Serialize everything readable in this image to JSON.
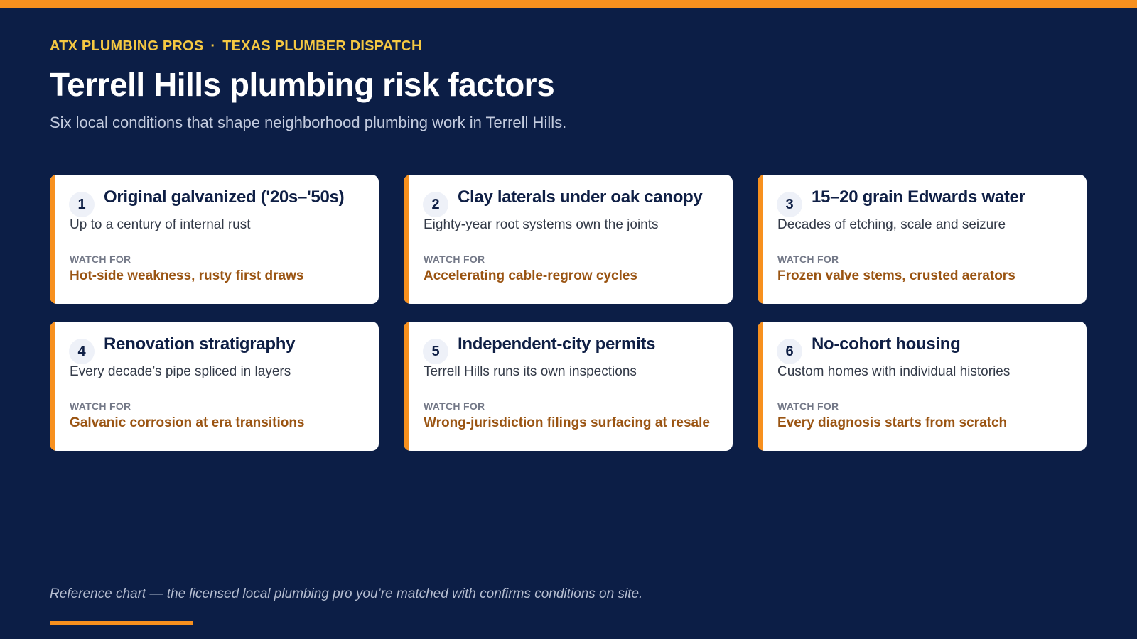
{
  "colors": {
    "background": "#0c1e46",
    "accent": "#f7901e",
    "eyebrow": "#f5c842",
    "card_title": "#0f1f45",
    "watch_value": "#9a5412"
  },
  "header": {
    "brand": "ATX PLUMBING PROS",
    "separator": "·",
    "section": "TEXAS PLUMBER DISPATCH",
    "title": "Terrell Hills plumbing risk factors",
    "subtitle": "Six local conditions that shape neighborhood plumbing work in Terrell Hills."
  },
  "cards": [
    {
      "number": "1",
      "title": "Original galvanized ('20s–'50s)",
      "description": "Up to a century of internal rust",
      "watch_label": "WATCH FOR",
      "watch_value": "Hot-side weakness, rusty first draws"
    },
    {
      "number": "2",
      "title": "Clay laterals under oak canopy",
      "description": "Eighty-year root systems own the joints",
      "watch_label": "WATCH FOR",
      "watch_value": "Accelerating cable-regrow cycles"
    },
    {
      "number": "3",
      "title": "15–20 grain Edwards water",
      "description": "Decades of etching, scale and seizure",
      "watch_label": "WATCH FOR",
      "watch_value": "Frozen valve stems, crusted aerators"
    },
    {
      "number": "4",
      "title": "Renovation stratigraphy",
      "description": "Every decade’s pipe spliced in layers",
      "watch_label": "WATCH FOR",
      "watch_value": "Galvanic corrosion at era transitions"
    },
    {
      "number": "5",
      "title": "Independent-city permits",
      "description": "Terrell Hills runs its own inspections",
      "watch_label": "WATCH FOR",
      "watch_value": "Wrong-jurisdiction filings surfacing at resale"
    },
    {
      "number": "6",
      "title": "No-cohort housing",
      "description": "Custom homes with individual histories",
      "watch_label": "WATCH FOR",
      "watch_value": "Every diagnosis starts from scratch"
    }
  ],
  "footer": {
    "note": "Reference chart — the licensed local plumbing pro you’re matched with confirms conditions on site."
  }
}
